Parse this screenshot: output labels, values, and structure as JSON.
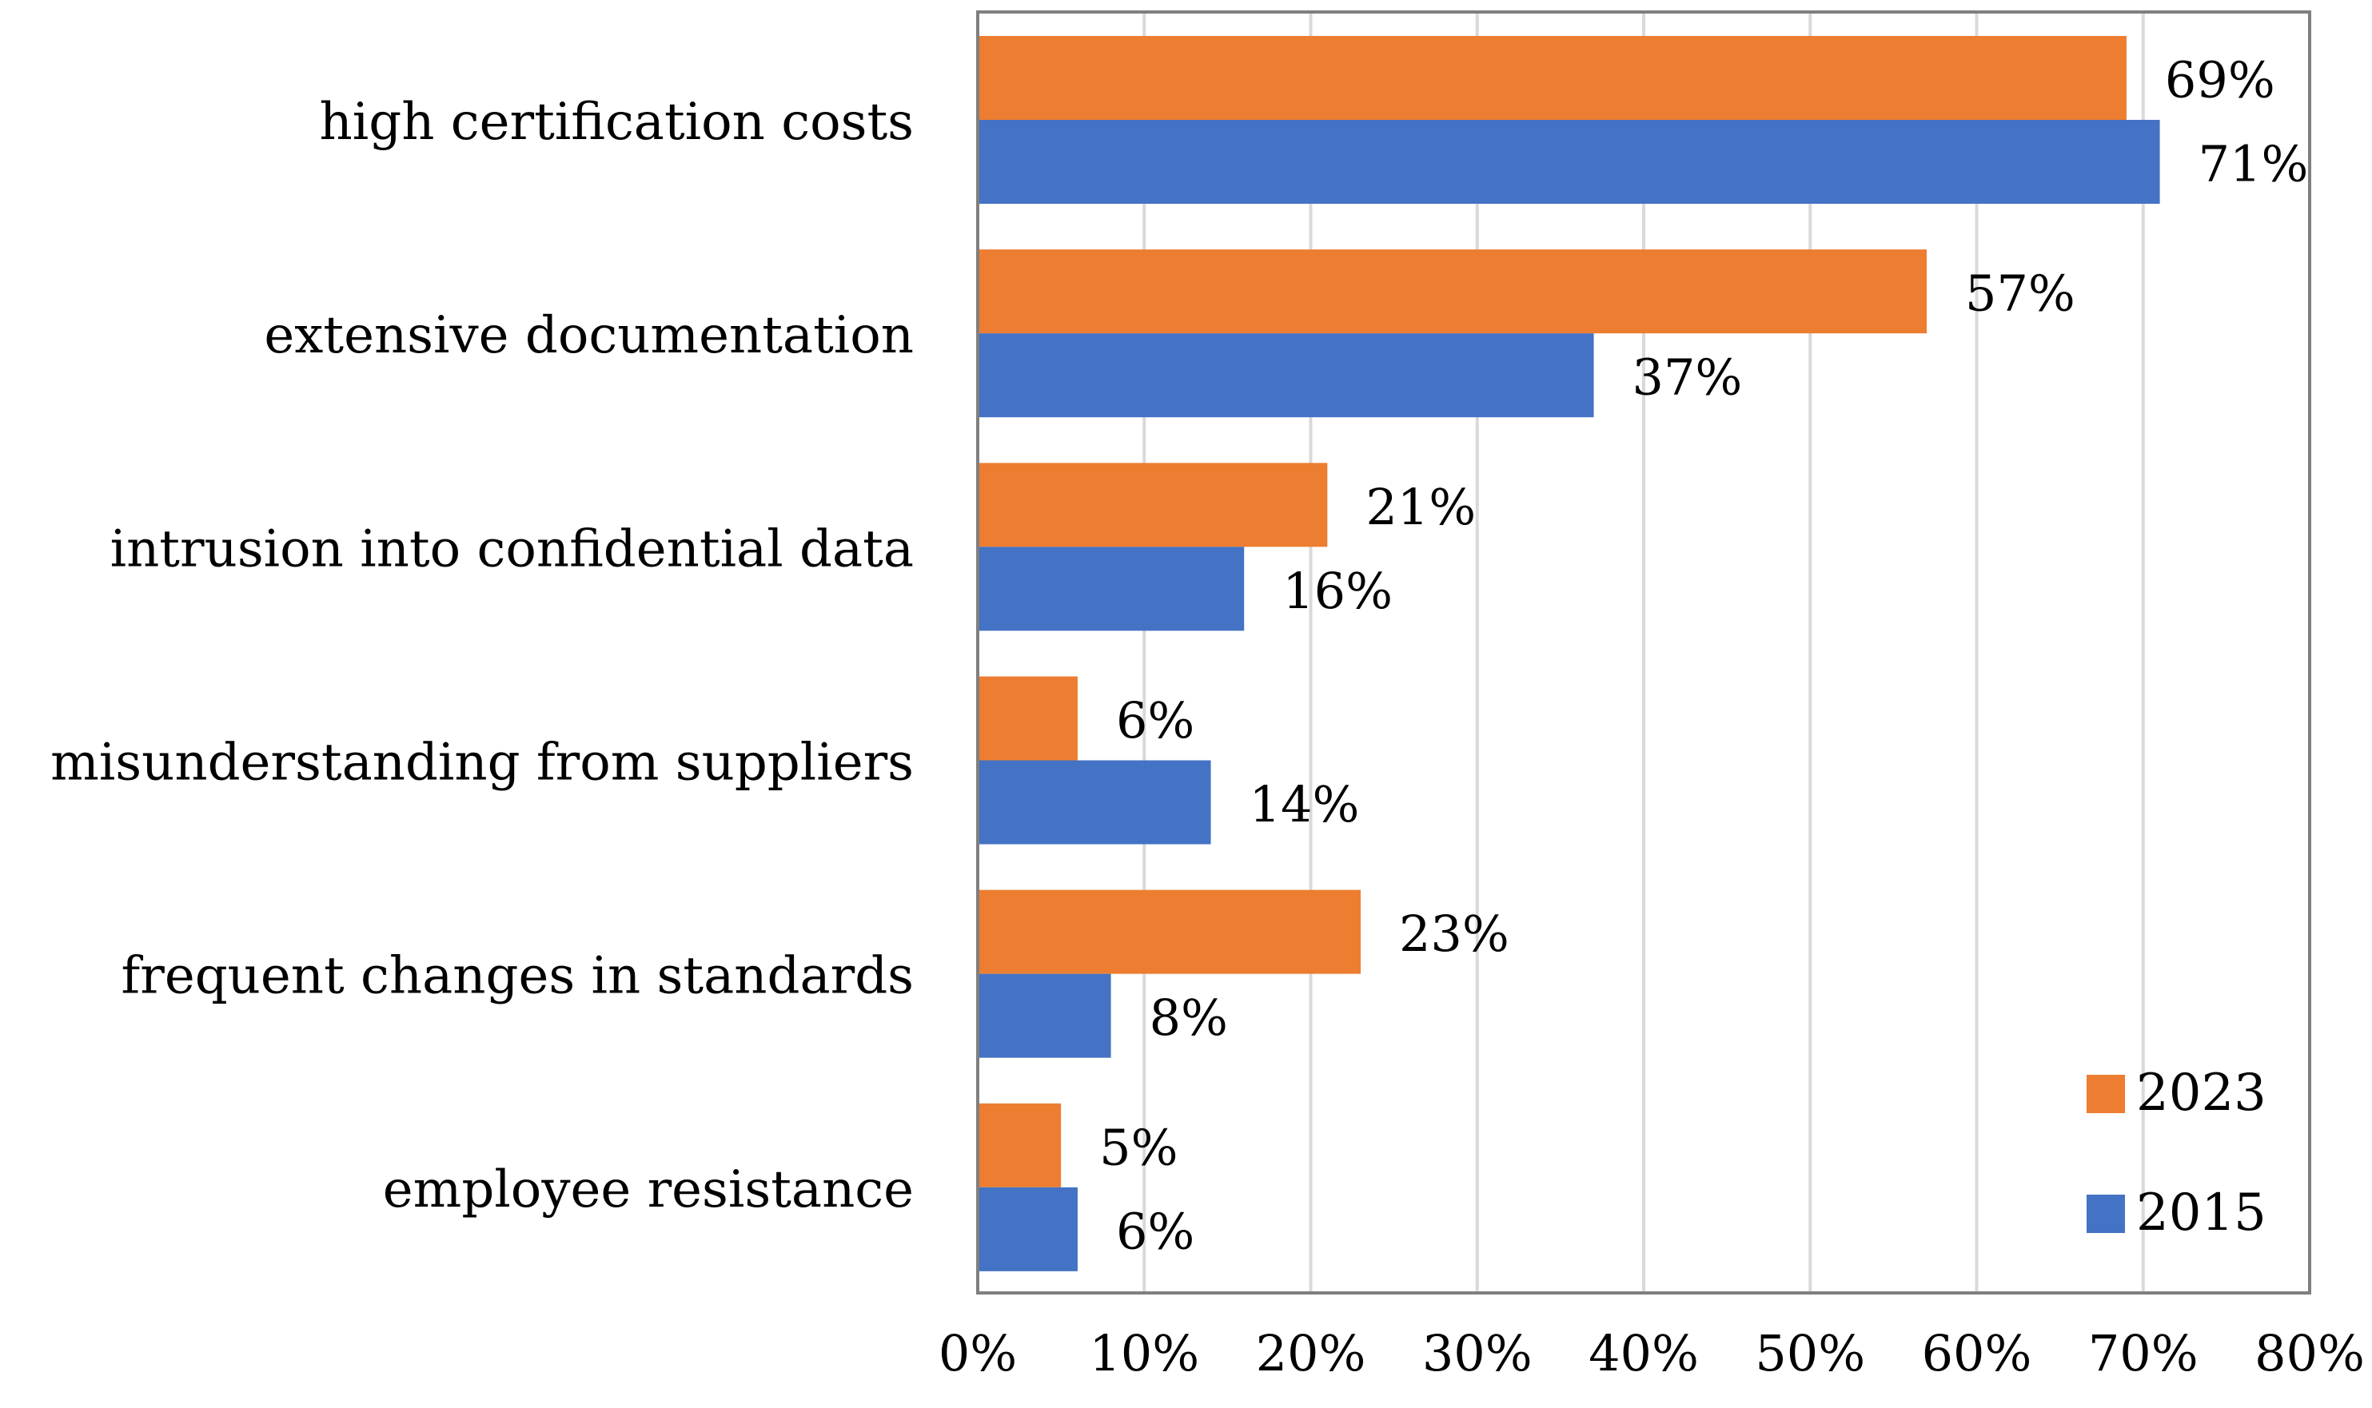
{
  "chart_data": {
    "type": "bar",
    "orientation": "horizontal",
    "categories": [
      "high certification costs",
      "extensive documentation",
      "intrusion into confidential data",
      "misunderstanding from suppliers",
      "frequent changes in standards",
      "employee resistance"
    ],
    "series": [
      {
        "name": "2023",
        "color": "#ED7D31",
        "values": [
          69,
          57,
          21,
          6,
          23,
          5
        ],
        "labels": [
          "69%",
          "57%",
          "21%",
          "6%",
          "23%",
          "5%"
        ]
      },
      {
        "name": "2015",
        "color": "#4472C4",
        "values": [
          71,
          37,
          16,
          14,
          8,
          6
        ],
        "labels": [
          "71%",
          "37%",
          "16%",
          "14%",
          "8%",
          "6%"
        ]
      }
    ],
    "xlim": [
      0,
      80
    ],
    "xticks": [
      0,
      10,
      20,
      30,
      40,
      50,
      60,
      70,
      80
    ],
    "xtick_labels": [
      "0%",
      "10%",
      "20%",
      "30%",
      "40%",
      "50%",
      "60%",
      "70%",
      "80%"
    ],
    "grid": "vertical",
    "legend": "bottom-right",
    "title": "",
    "xlabel": "",
    "ylabel": ""
  }
}
